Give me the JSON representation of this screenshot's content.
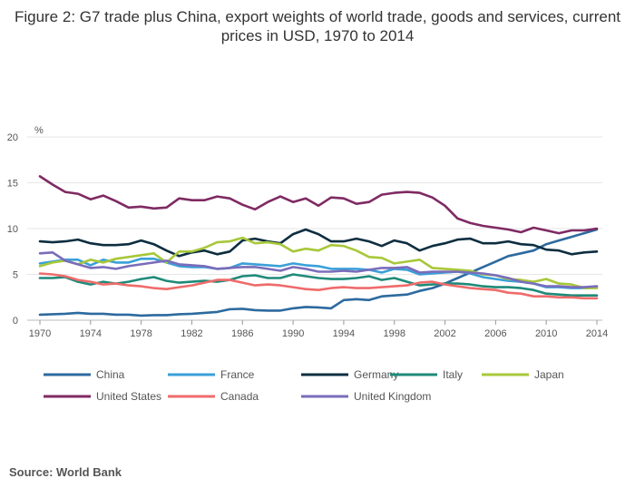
{
  "page": {
    "title": "Figure 2: G7 trade plus China, export weights of world trade, goods and services, current prices in USD, 1970 to 2014",
    "source": "Source: World Bank"
  },
  "chart_data": {
    "type": "line",
    "title": "Figure 2: G7 trade plus China, export weights of world trade, goods and services, current prices in USD, 1970 to 2014",
    "xlabel": "",
    "ylabel": "%",
    "xlim": [
      1970,
      2014
    ],
    "ylim": [
      0,
      20
    ],
    "yticks": [
      0,
      5,
      10,
      15,
      20
    ],
    "xticks": [
      1970,
      1974,
      1978,
      1982,
      1986,
      1990,
      1994,
      1998,
      2002,
      2006,
      2010,
      2014
    ],
    "grid": true,
    "legend_position": "bottom",
    "x": [
      1970,
      1971,
      1972,
      1973,
      1974,
      1975,
      1976,
      1977,
      1978,
      1979,
      1980,
      1981,
      1982,
      1983,
      1984,
      1985,
      1986,
      1987,
      1988,
      1989,
      1990,
      1991,
      1992,
      1993,
      1994,
      1995,
      1996,
      1997,
      1998,
      1999,
      2000,
      2001,
      2002,
      2003,
      2004,
      2005,
      2006,
      2007,
      2008,
      2009,
      2010,
      2011,
      2012,
      2013,
      2014
    ],
    "series": [
      {
        "name": "China",
        "color": "#2d6a9f",
        "values": [
          0.6,
          0.65,
          0.7,
          0.8,
          0.7,
          0.7,
          0.6,
          0.6,
          0.5,
          0.55,
          0.55,
          0.65,
          0.7,
          0.8,
          0.9,
          1.2,
          1.25,
          1.1,
          1.05,
          1.05,
          1.3,
          1.45,
          1.4,
          1.3,
          2.2,
          2.3,
          2.2,
          2.6,
          2.7,
          2.8,
          3.2,
          3.5,
          4.0,
          4.6,
          5.2,
          5.8,
          6.4,
          7.0,
          7.3,
          7.6,
          8.3,
          8.7,
          9.1,
          9.5,
          9.9
        ]
      },
      {
        "name": "France",
        "color": "#3aa0d8",
        "values": [
          6.2,
          6.4,
          6.6,
          6.6,
          6.0,
          6.6,
          6.3,
          6.3,
          6.7,
          6.7,
          6.3,
          5.9,
          5.8,
          5.8,
          5.6,
          5.7,
          6.2,
          6.1,
          6.0,
          5.9,
          6.2,
          6.0,
          5.9,
          5.6,
          5.6,
          5.6,
          5.5,
          5.2,
          5.6,
          5.5,
          5.0,
          5.1,
          5.2,
          5.3,
          5.1,
          4.7,
          4.5,
          4.3,
          4.2,
          4.0,
          3.6,
          3.6,
          3.5,
          3.5,
          3.6
        ]
      },
      {
        "name": "Germany",
        "color": "#0d2e40",
        "values": [
          8.6,
          8.5,
          8.6,
          8.8,
          8.4,
          8.2,
          8.2,
          8.3,
          8.7,
          8.3,
          7.6,
          7.0,
          7.4,
          7.6,
          7.2,
          7.5,
          8.7,
          8.9,
          8.6,
          8.4,
          9.4,
          9.9,
          9.4,
          8.6,
          8.6,
          8.9,
          8.6,
          8.1,
          8.7,
          8.4,
          7.6,
          8.1,
          8.4,
          8.8,
          8.9,
          8.4,
          8.4,
          8.6,
          8.3,
          8.2,
          7.7,
          7.6,
          7.2,
          7.4,
          7.5
        ]
      },
      {
        "name": "Italy",
        "color": "#1f8a79",
        "values": [
          4.6,
          4.6,
          4.7,
          4.2,
          3.9,
          4.2,
          4.0,
          4.2,
          4.5,
          4.7,
          4.3,
          4.1,
          4.2,
          4.3,
          4.2,
          4.4,
          4.8,
          4.9,
          4.6,
          4.6,
          5.0,
          4.8,
          4.6,
          4.5,
          4.5,
          4.6,
          4.8,
          4.4,
          4.6,
          4.2,
          3.8,
          3.9,
          4.0,
          4.0,
          3.9,
          3.7,
          3.6,
          3.6,
          3.5,
          3.3,
          2.9,
          2.8,
          2.7,
          2.7,
          2.7
        ]
      },
      {
        "name": "Japan",
        "color": "#a8c73a",
        "values": [
          5.9,
          6.3,
          6.5,
          6.1,
          6.6,
          6.3,
          6.7,
          6.9,
          7.1,
          7.3,
          6.3,
          7.5,
          7.5,
          7.9,
          8.5,
          8.6,
          9.0,
          8.4,
          8.5,
          8.3,
          7.5,
          7.8,
          7.6,
          8.2,
          8.1,
          7.6,
          6.9,
          6.8,
          6.2,
          6.4,
          6.6,
          5.7,
          5.6,
          5.5,
          5.4,
          5.0,
          4.9,
          4.5,
          4.4,
          4.2,
          4.5,
          4.0,
          3.9,
          3.5,
          3.5
        ]
      },
      {
        "name": "United States",
        "color": "#7f2a63",
        "values": [
          15.7,
          14.8,
          14.0,
          13.8,
          13.2,
          13.6,
          13.0,
          12.3,
          12.4,
          12.2,
          12.3,
          13.3,
          13.1,
          13.1,
          13.5,
          13.3,
          12.6,
          12.1,
          12.9,
          13.5,
          12.9,
          13.3,
          12.5,
          13.4,
          13.3,
          12.7,
          12.9,
          13.7,
          13.9,
          14.0,
          13.9,
          13.4,
          12.5,
          11.1,
          10.6,
          10.3,
          10.1,
          9.9,
          9.6,
          10.1,
          9.8,
          9.5,
          9.8,
          9.8,
          10.0
        ]
      },
      {
        "name": "Canada",
        "color": "#ef6b6b",
        "values": [
          5.1,
          5.0,
          4.8,
          4.4,
          4.2,
          3.9,
          4.0,
          3.8,
          3.7,
          3.5,
          3.4,
          3.6,
          3.8,
          4.1,
          4.4,
          4.4,
          4.1,
          3.8,
          3.9,
          3.8,
          3.6,
          3.4,
          3.3,
          3.5,
          3.6,
          3.5,
          3.5,
          3.6,
          3.7,
          3.8,
          4.1,
          4.2,
          3.9,
          3.7,
          3.5,
          3.4,
          3.3,
          3.0,
          2.9,
          2.6,
          2.6,
          2.5,
          2.5,
          2.4,
          2.4
        ]
      },
      {
        "name": "United Kingdom",
        "color": "#7a6cba",
        "values": [
          7.3,
          7.4,
          6.5,
          6.1,
          5.7,
          5.8,
          5.6,
          5.9,
          6.1,
          6.3,
          6.5,
          6.1,
          6.0,
          5.9,
          5.6,
          5.7,
          5.8,
          5.8,
          5.6,
          5.4,
          5.8,
          5.6,
          5.3,
          5.3,
          5.4,
          5.3,
          5.5,
          5.7,
          5.7,
          5.8,
          5.2,
          5.3,
          5.3,
          5.3,
          5.2,
          5.1,
          4.9,
          4.6,
          4.2,
          4.0,
          3.7,
          3.7,
          3.6,
          3.6,
          3.7
        ]
      }
    ]
  }
}
